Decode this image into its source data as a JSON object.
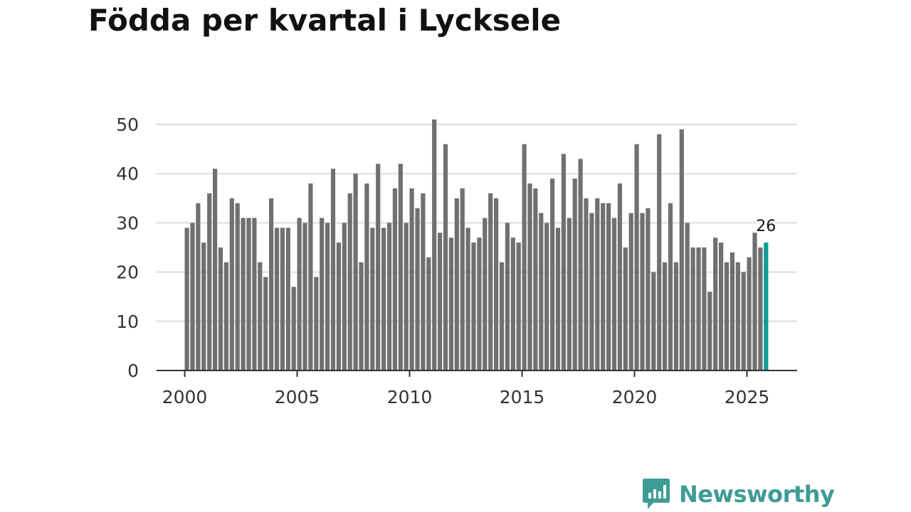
{
  "title": "Födda per kvartal i Lycksele",
  "brand": {
    "name": "Newsworthy",
    "color": "#3f9c94"
  },
  "colors": {
    "bar": "#707073",
    "highlight": "#0f9b94",
    "grid": "#dddddd",
    "axis": "#333333"
  },
  "chart_data": {
    "type": "bar",
    "title": "Födda per kvartal i Lycksele",
    "xlabel": "",
    "ylabel": "",
    "ylim": [
      0,
      50
    ],
    "y_ticks": [
      0,
      10,
      20,
      30,
      40,
      50
    ],
    "x_ticks": [
      2000,
      2005,
      2010,
      2015,
      2020,
      2025
    ],
    "start_year": 2000,
    "quarters_per_year": 4,
    "grid": true,
    "values": [
      29,
      30,
      34,
      26,
      36,
      41,
      25,
      22,
      35,
      34,
      31,
      31,
      31,
      22,
      19,
      35,
      29,
      29,
      29,
      17,
      31,
      30,
      38,
      19,
      31,
      30,
      41,
      26,
      30,
      36,
      40,
      22,
      38,
      29,
      42,
      29,
      30,
      37,
      42,
      30,
      37,
      33,
      36,
      23,
      51,
      28,
      46,
      27,
      35,
      37,
      29,
      26,
      27,
      31,
      36,
      35,
      22,
      30,
      27,
      26,
      46,
      38,
      37,
      32,
      30,
      39,
      29,
      44,
      31,
      39,
      43,
      35,
      32,
      35,
      34,
      34,
      31,
      38,
      25,
      32,
      46,
      32,
      33,
      20,
      48,
      22,
      34,
      22,
      49,
      30,
      25,
      25,
      25,
      16,
      27,
      26,
      22,
      24,
      22,
      20,
      23,
      28,
      25,
      26
    ],
    "highlight_last": true,
    "annotation": {
      "index": 103,
      "text": "26"
    }
  }
}
